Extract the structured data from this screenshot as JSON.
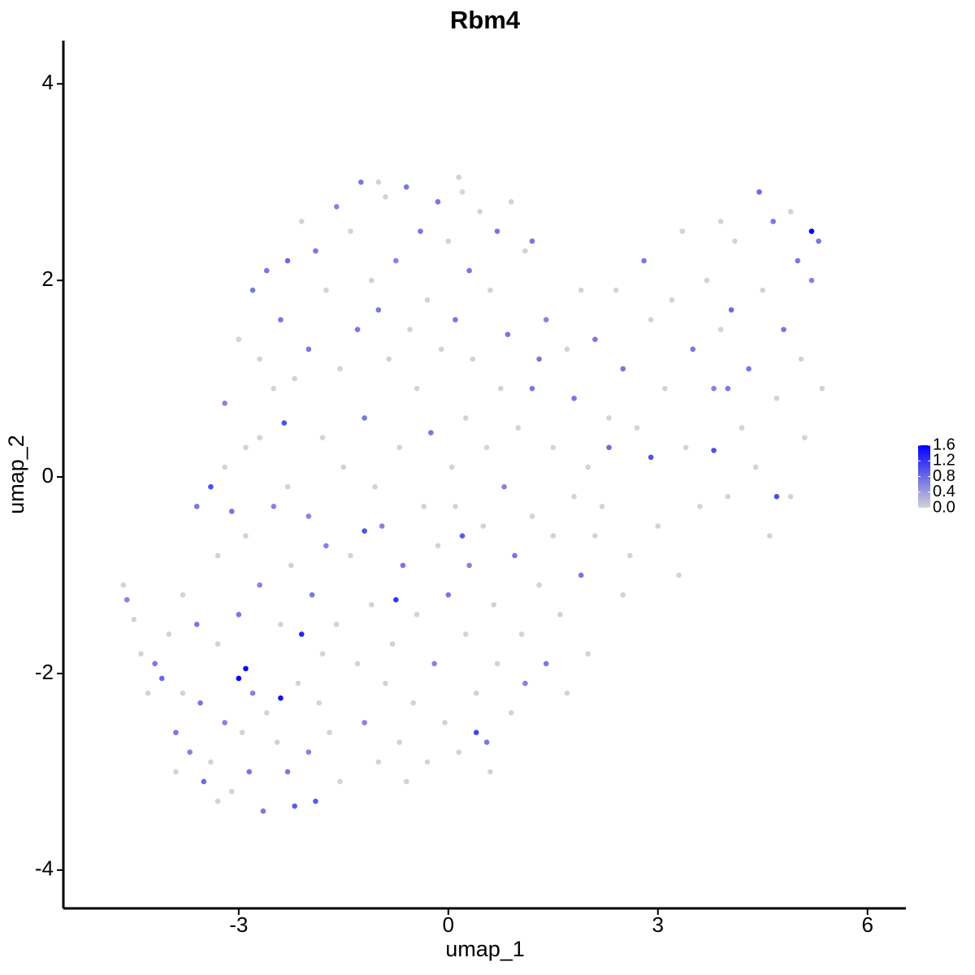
{
  "chart_data": {
    "type": "scatter",
    "title": "Rbm4",
    "x_label": "umap_1",
    "y_label": "umap_2",
    "xlim": [
      -5.51,
      6.55
    ],
    "ylim": [
      -4.39,
      4.44
    ],
    "xticks": [
      -3,
      0,
      3,
      6
    ],
    "yticks": [
      -4,
      -2,
      0,
      2,
      4
    ],
    "low_color": "#d3d3d3",
    "high_color": "#0000ff",
    "colorbar": {
      "lim": [
        0,
        1.6
      ],
      "ticks": [
        {
          "value": 0,
          "label": "0.0"
        },
        0.4,
        0.8,
        1.2,
        1.6
      ]
    },
    "x": [
      -4.6,
      -4.65,
      -4.5,
      -4.4,
      -4.2,
      -4.1,
      -4.0,
      -3.9,
      -3.8,
      -3.7,
      -3.6,
      -3.55,
      -3.5,
      -3.4,
      -3.3,
      -3.2,
      -3.1,
      -3.0,
      -2.95,
      -2.9,
      -2.85,
      -2.8,
      -2.7,
      -2.65,
      -2.6,
      -2.5,
      -2.45,
      -2.4,
      -2.3,
      -2.25,
      -2.2,
      -2.15,
      -2.0,
      -1.95,
      -1.9,
      -1.85,
      -1.8,
      -1.75,
      -1.7,
      -1.6,
      -1.55,
      -3.6,
      -3.3,
      -3.1,
      -3.2,
      -2.7,
      -3.8,
      -4.3,
      -3.9,
      -3.3,
      -2.0,
      -2.3,
      -3.2,
      -3.0,
      -2.9,
      -2.8,
      -2.7,
      -2.6,
      -2.5,
      -2.4,
      -2.35,
      -2.3,
      -2.2,
      -2.1,
      -2.0,
      -1.9,
      -1.8,
      -1.75,
      -1.6,
      -1.55,
      -1.5,
      -1.4,
      -1.3,
      -1.25,
      -1.2,
      -1.1,
      -1.05,
      -1.0,
      -0.9,
      -0.85,
      -0.75,
      -0.7,
      -0.6,
      -0.55,
      -0.45,
      -0.4,
      -0.3,
      -0.25,
      -0.15,
      -0.1,
      0.0,
      0.05,
      0.1,
      0.15,
      0.25,
      0.3,
      0.35,
      0.45,
      0.55,
      0.6,
      0.7,
      0.75,
      0.85,
      0.9,
      1.0,
      1.2,
      1.3,
      -1.0,
      0.2,
      -1.4,
      -1.3,
      -1.2,
      -1.1,
      -1.0,
      -0.95,
      -0.9,
      -0.8,
      -0.7,
      -0.65,
      -0.5,
      -0.45,
      -0.35,
      -0.3,
      -0.2,
      -0.15,
      -0.05,
      0.0,
      0.1,
      0.15,
      0.25,
      0.3,
      0.4,
      0.5,
      0.55,
      0.65,
      0.7,
      0.8,
      0.9,
      0.95,
      1.05,
      1.1,
      1.2,
      1.3,
      1.4,
      1.5,
      1.6,
      1.7,
      1.8,
      1.9,
      2.0,
      2.1,
      0.6,
      -0.6,
      0.2,
      1.2,
      1.4,
      1.5,
      1.7,
      1.8,
      1.9,
      2.0,
      2.1,
      2.2,
      2.3,
      2.4,
      2.5,
      2.6,
      2.7,
      2.8,
      2.9,
      3.0,
      3.1,
      3.2,
      3.3,
      3.35,
      3.4,
      3.5,
      3.6,
      3.7,
      3.8,
      3.9,
      4.0,
      4.05,
      4.1,
      4.2,
      4.3,
      4.4,
      4.45,
      4.5,
      4.6,
      4.65,
      4.7,
      4.8,
      4.9,
      5.0,
      5.05,
      5.1,
      5.2,
      5.3,
      5.35,
      4.9,
      3.9,
      2.5,
      2.3,
      1.1,
      4.0,
      -2.1,
      -2.9,
      -3.0,
      -2.4,
      5.2,
      -0.75,
      0.4,
      -3.4,
      4.7,
      3.8,
      2.9,
      -1.2
    ],
    "y": [
      -1.25,
      -1.1,
      -1.45,
      -1.8,
      -1.9,
      -2.05,
      -1.6,
      -2.6,
      -2.2,
      -2.8,
      -1.5,
      -2.3,
      -3.1,
      -2.9,
      -1.7,
      -2.5,
      -3.2,
      -1.4,
      -2.6,
      -0.6,
      -3.0,
      -2.2,
      -1.1,
      -3.4,
      -2.4,
      -0.3,
      -2.7,
      -1.5,
      -3.0,
      -0.9,
      -3.35,
      -2.1,
      -2.8,
      -1.2,
      -3.3,
      -2.3,
      -1.8,
      -0.7,
      -2.6,
      -1.5,
      -3.1,
      -0.3,
      -0.8,
      -0.35,
      0.1,
      0.4,
      -1.2,
      -2.2,
      -3.0,
      -3.3,
      -0.4,
      -0.1,
      0.75,
      1.4,
      0.3,
      1.9,
      1.2,
      2.1,
      0.9,
      1.6,
      0.55,
      2.2,
      1.0,
      2.6,
      1.3,
      2.3,
      0.4,
      1.9,
      2.75,
      1.1,
      0.1,
      2.5,
      1.5,
      3.0,
      0.6,
      2.0,
      -0.1,
      1.7,
      2.85,
      1.2,
      2.2,
      0.3,
      2.95,
      1.5,
      0.9,
      2.5,
      1.8,
      0.45,
      2.8,
      1.3,
      2.4,
      0.1,
      1.6,
      3.05,
      0.6,
      2.1,
      1.2,
      2.7,
      0.3,
      1.9,
      2.5,
      0.9,
      1.45,
      2.8,
      0.5,
      2.4,
      1.2,
      3.0,
      2.9,
      -0.8,
      -1.9,
      -2.5,
      -1.3,
      -2.9,
      -0.5,
      -2.1,
      -1.7,
      -2.7,
      -0.9,
      -2.3,
      -1.4,
      -0.3,
      -2.9,
      -1.9,
      -0.7,
      -2.5,
      -1.2,
      -0.3,
      -2.8,
      -1.6,
      -0.9,
      -2.2,
      -0.5,
      -2.7,
      -1.3,
      -1.9,
      -0.1,
      -2.4,
      -0.8,
      -1.6,
      -2.1,
      -0.4,
      -1.1,
      -1.9,
      -0.6,
      -1.4,
      -2.2,
      -0.2,
      -1.0,
      -1.8,
      -0.6,
      -3.0,
      -3.1,
      -0.6,
      0.9,
      1.6,
      0.3,
      1.3,
      0.8,
      1.9,
      0.1,
      1.4,
      -0.3,
      0.6,
      1.9,
      1.1,
      -0.8,
      0.5,
      2.2,
      1.6,
      -0.5,
      0.9,
      1.8,
      -1.0,
      2.5,
      0.3,
      1.3,
      -0.3,
      2.0,
      0.9,
      1.5,
      -0.2,
      1.7,
      2.4,
      0.5,
      1.1,
      0.1,
      2.9,
      1.9,
      -0.6,
      2.6,
      0.8,
      1.5,
      -0.2,
      2.2,
      1.2,
      0.4,
      2.0,
      2.4,
      0.9,
      2.7,
      2.6,
      -1.2,
      0.3,
      2.3,
      0.9,
      -1.6,
      -1.95,
      -2.05,
      -2.25,
      2.5,
      -1.25,
      -2.6,
      -0.1,
      -0.2,
      0.27,
      0.2,
      -0.55
    ],
    "expression": [
      0.6,
      0,
      0,
      0,
      0.7,
      0.8,
      0,
      0.7,
      0,
      0.6,
      0.7,
      0.7,
      0.8,
      0,
      0,
      0.6,
      0,
      0.7,
      0,
      0,
      0.7,
      0.6,
      0.6,
      0.7,
      0,
      0.6,
      0,
      0,
      0.7,
      0,
      0.9,
      0,
      0.6,
      0.7,
      0.9,
      0,
      0,
      0.6,
      0,
      0,
      0,
      0.7,
      0,
      0.7,
      0,
      0,
      0,
      0,
      0,
      0,
      0.6,
      0,
      0.6,
      0,
      0,
      0.7,
      0,
      0.7,
      0,
      0.7,
      1.0,
      0.8,
      0,
      0,
      0.7,
      0.7,
      0,
      0,
      0.6,
      0,
      0,
      0,
      0.7,
      0.7,
      0.7,
      0,
      0,
      0.7,
      0,
      0,
      0.6,
      0,
      0.7,
      0,
      0,
      0.7,
      0,
      0.7,
      0.7,
      0,
      0,
      0,
      0.7,
      0,
      0,
      0.7,
      0,
      0,
      0,
      0,
      0.7,
      0,
      0.7,
      0,
      0,
      0.7,
      0.7,
      0,
      0,
      0,
      0,
      0.6,
      0,
      0,
      0.6,
      0,
      0,
      0,
      0.7,
      0,
      0,
      0,
      0,
      0.6,
      0,
      0,
      0.7,
      0,
      0,
      0,
      0.6,
      0,
      0,
      0.7,
      0,
      0,
      0.6,
      0,
      0.7,
      0,
      0.6,
      0,
      0,
      0.7,
      0,
      0,
      0,
      0,
      0.7,
      0,
      0,
      0,
      0,
      0.9,
      0.7,
      0.6,
      0,
      0,
      0.7,
      0,
      0,
      0.7,
      0,
      0,
      0,
      0.7,
      0,
      0,
      0.7,
      0,
      0,
      0,
      0,
      0,
      0,
      0,
      0.7,
      0,
      0,
      0.6,
      0,
      0,
      0.8,
      0,
      0,
      0.7,
      0,
      0.8,
      0,
      0,
      0.7,
      0,
      0.7,
      0,
      0.7,
      0,
      0,
      0.6,
      0.7,
      0,
      0,
      0,
      0,
      0.8,
      0,
      0.7,
      1.3,
      1.6,
      1.6,
      1.5,
      1.6,
      1.2,
      1.1,
      1.0,
      1.0,
      1.0,
      1.0,
      1.0
    ]
  }
}
